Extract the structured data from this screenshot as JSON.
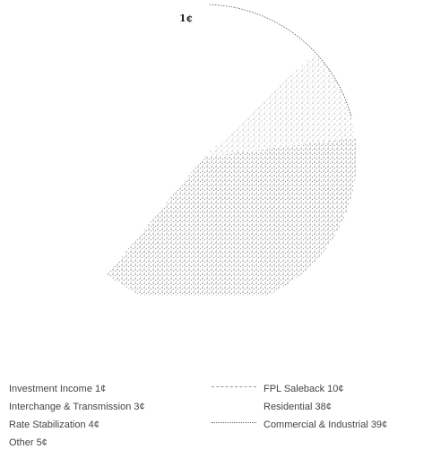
{
  "chart_data": {
    "type": "pie",
    "categories": [
      "Investment Income",
      "Interchange & Transmission",
      "Rate Stabilization",
      "Other",
      "FPL Saleback",
      "Residential",
      "Commercial & Industrial"
    ],
    "values": [
      1,
      3,
      4,
      5,
      10,
      38,
      39
    ],
    "unit": "¢",
    "slice_labels": [
      "1¢"
    ],
    "legend": {
      "placement": "bottom",
      "left": [
        {
          "text": "Investment Income 1¢"
        },
        {
          "text": "Interchange & Transmission 3¢"
        },
        {
          "text": "Rate Stabilization 4¢"
        },
        {
          "text": "Other 5¢"
        }
      ],
      "right": [
        {
          "text": "FPL Saleback 10¢",
          "swatch": "dashed"
        },
        {
          "text": "Residential 38¢",
          "swatch": "none"
        },
        {
          "text": "Commercial & Industrial 39¢",
          "swatch": "dotted"
        }
      ]
    },
    "colors": {
      "stipple": "#8a8a8a",
      "edge": "#555555",
      "text": "#444444"
    }
  }
}
